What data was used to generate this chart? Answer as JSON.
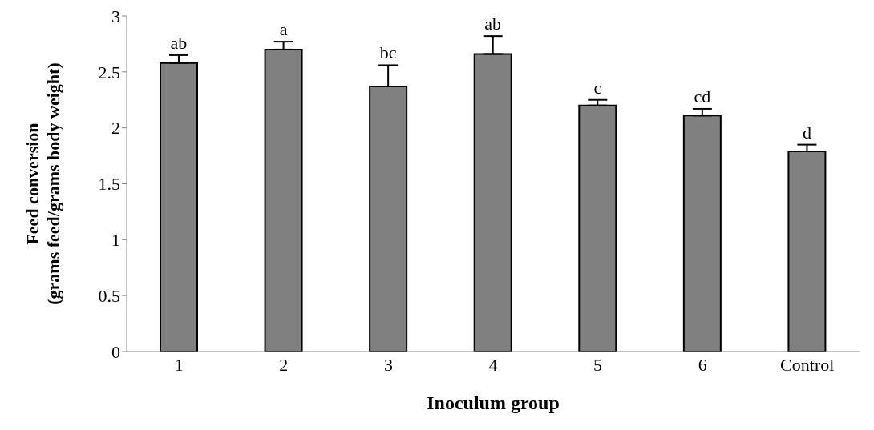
{
  "chart_data": {
    "type": "bar",
    "xlabel": "Inoculum group",
    "ylabel": "Feed conversion\n(grams feed/grams body weight)",
    "categories": [
      "1",
      "2",
      "3",
      "4",
      "5",
      "6",
      "Control"
    ],
    "values": [
      2.58,
      2.7,
      2.37,
      2.66,
      2.2,
      2.11,
      1.79
    ],
    "errors": [
      0.07,
      0.07,
      0.19,
      0.16,
      0.05,
      0.06,
      0.06
    ],
    "value_labels": [
      "ab",
      "a",
      "bc",
      "ab",
      "c",
      "cd",
      "d"
    ],
    "color": "#808080",
    "ylim": [
      0,
      3
    ],
    "yticks": [
      0,
      0.5,
      1,
      1.5,
      2,
      2.5,
      3
    ],
    "grid": false
  }
}
